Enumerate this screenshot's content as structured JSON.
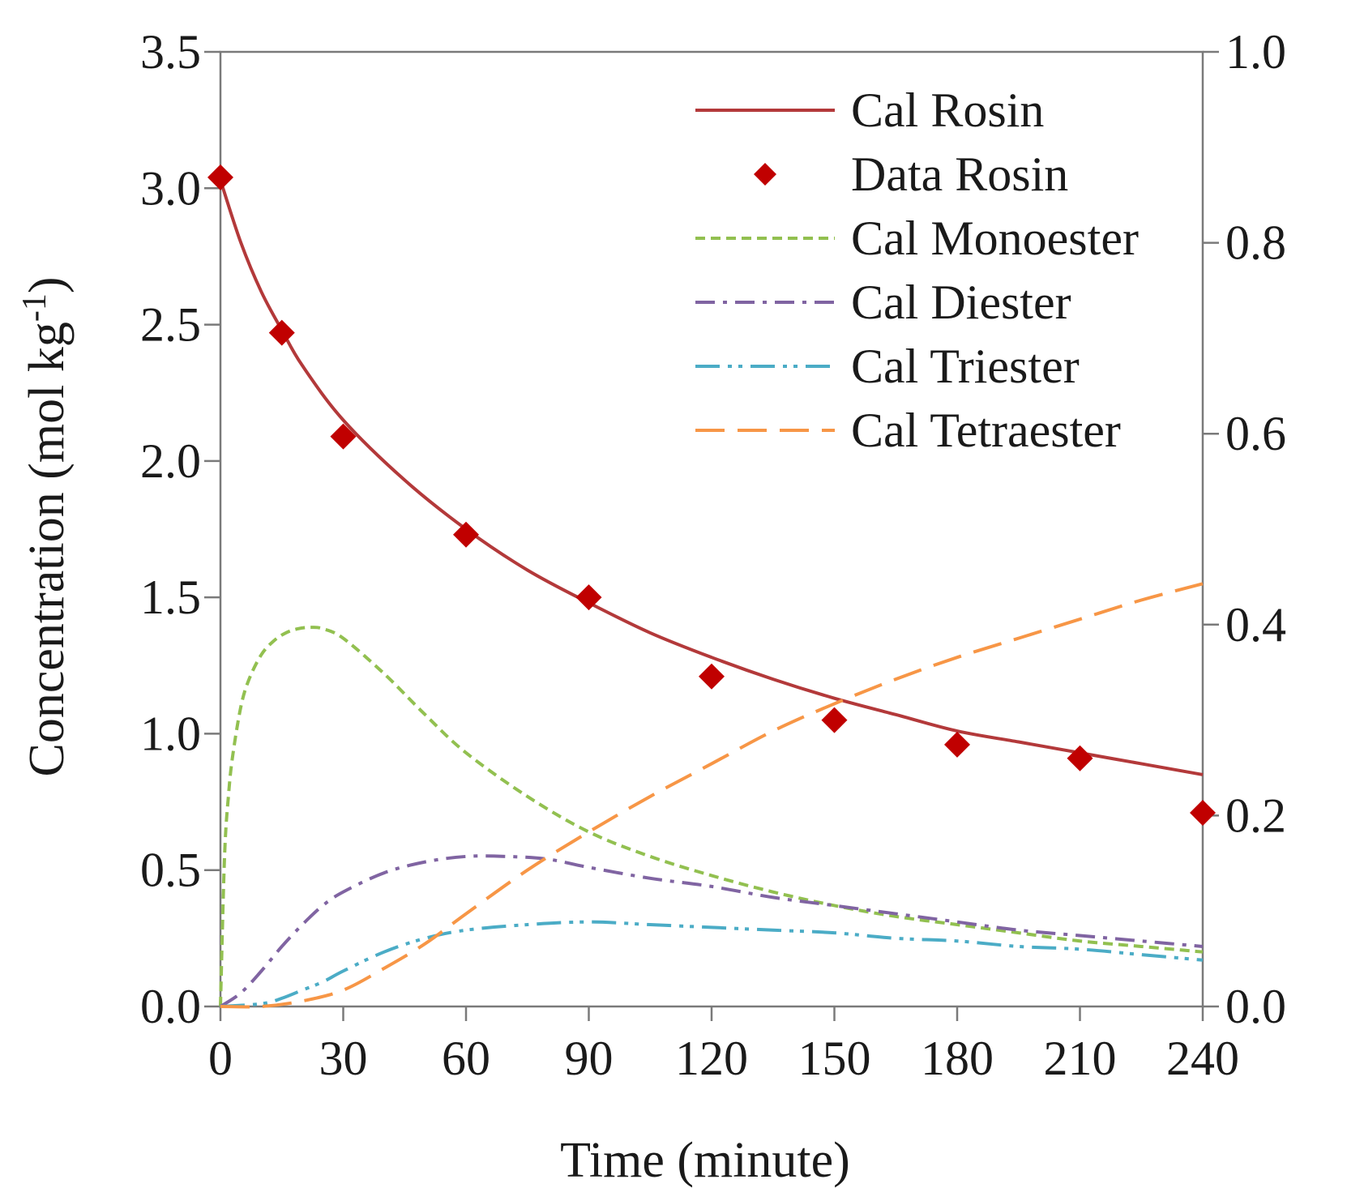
{
  "chart_data": {
    "type": "line",
    "xlabel": "Time (minute)",
    "ylabel_main": "Concentration (mol kg",
    "ylabel_sup": "-1",
    "ylabel_close": ")",
    "xlim": [
      0,
      240
    ],
    "ylim": [
      0,
      3.5
    ],
    "y2lim": [
      0,
      1.0
    ],
    "x_ticks": [
      0,
      30,
      60,
      90,
      120,
      150,
      180,
      210,
      240
    ],
    "x_tick_labels": [
      "0",
      "30",
      "60",
      "90",
      "120",
      "150",
      "180",
      "210",
      "240"
    ],
    "y_ticks": [
      0,
      0.5,
      1.0,
      1.5,
      2.0,
      2.5,
      3.0,
      3.5
    ],
    "y_tick_labels": [
      "0.0",
      "0.5",
      "1.0",
      "1.5",
      "2.0",
      "2.5",
      "3.0",
      "3.5"
    ],
    "y2_ticks": [
      0,
      0.2,
      0.4,
      0.6,
      0.8,
      1.0
    ],
    "y2_tick_labels": [
      "0.0",
      "0.2",
      "0.4",
      "0.6",
      "0.8",
      "1.0"
    ],
    "grid": false,
    "legend_position": "top-right",
    "series": [
      {
        "name": "Cal Rosin",
        "style": "solid",
        "axis": "left",
        "color": "#b3393a",
        "x": [
          0,
          5,
          10,
          15,
          20,
          30,
          45,
          60,
          75,
          90,
          105,
          120,
          135,
          150,
          165,
          180,
          195,
          210,
          225,
          240
        ],
        "y": [
          3.03,
          2.8,
          2.62,
          2.48,
          2.35,
          2.15,
          1.93,
          1.75,
          1.6,
          1.48,
          1.37,
          1.28,
          1.2,
          1.13,
          1.07,
          1.01,
          0.97,
          0.93,
          0.89,
          0.85
        ]
      },
      {
        "name": "Data Rosin",
        "style": "marker",
        "axis": "left",
        "color": "#c00000",
        "x": [
          0,
          15,
          30,
          60,
          90,
          120,
          150,
          180,
          210,
          240
        ],
        "y": [
          3.04,
          2.47,
          2.09,
          1.73,
          1.5,
          1.21,
          1.05,
          0.96,
          0.91,
          0.71
        ]
      },
      {
        "name": "Cal Monoester",
        "style": "dotted",
        "axis": "left",
        "color": "#92c050",
        "x": [
          0,
          1,
          2,
          3,
          5,
          7,
          10,
          13,
          16,
          19,
          22,
          25,
          30,
          40,
          50,
          60,
          75,
          90,
          105,
          120,
          135,
          150,
          165,
          180,
          195,
          210,
          225,
          240
        ],
        "y": [
          0,
          0.55,
          0.78,
          0.92,
          1.1,
          1.2,
          1.29,
          1.34,
          1.37,
          1.385,
          1.39,
          1.385,
          1.35,
          1.22,
          1.07,
          0.93,
          0.77,
          0.64,
          0.55,
          0.48,
          0.42,
          0.37,
          0.33,
          0.3,
          0.27,
          0.24,
          0.22,
          0.2
        ]
      },
      {
        "name": "Cal Diester",
        "style": "dashdot",
        "axis": "left",
        "color": "#8064a2",
        "x": [
          0,
          5,
          10,
          15,
          20,
          25,
          30,
          40,
          50,
          60,
          70,
          80,
          90,
          105,
          120,
          135,
          150,
          165,
          180,
          195,
          210,
          225,
          240
        ],
        "y": [
          0,
          0.05,
          0.13,
          0.22,
          0.3,
          0.37,
          0.42,
          0.49,
          0.53,
          0.55,
          0.55,
          0.54,
          0.51,
          0.47,
          0.44,
          0.4,
          0.37,
          0.34,
          0.31,
          0.28,
          0.26,
          0.24,
          0.22
        ]
      },
      {
        "name": "Cal Triester",
        "style": "dashdotdot",
        "axis": "left",
        "color": "#4bacc6",
        "x": [
          0,
          10,
          15,
          20,
          25,
          30,
          40,
          50,
          60,
          75,
          90,
          105,
          120,
          135,
          150,
          165,
          180,
          195,
          210,
          225,
          240
        ],
        "y": [
          0,
          0.01,
          0.03,
          0.06,
          0.09,
          0.13,
          0.2,
          0.25,
          0.28,
          0.3,
          0.31,
          0.3,
          0.29,
          0.28,
          0.27,
          0.25,
          0.24,
          0.22,
          0.21,
          0.19,
          0.17
        ]
      },
      {
        "name": "Cal Tetraester",
        "style": "longdash",
        "axis": "left",
        "color": "#f79646",
        "x": [
          0,
          10,
          20,
          30,
          40,
          50,
          60,
          75,
          90,
          105,
          120,
          135,
          150,
          165,
          180,
          195,
          210,
          225,
          240
        ],
        "y": [
          0,
          0.0,
          0.02,
          0.06,
          0.14,
          0.23,
          0.34,
          0.5,
          0.64,
          0.77,
          0.89,
          1.01,
          1.11,
          1.2,
          1.28,
          1.35,
          1.42,
          1.49,
          1.55
        ]
      }
    ]
  }
}
